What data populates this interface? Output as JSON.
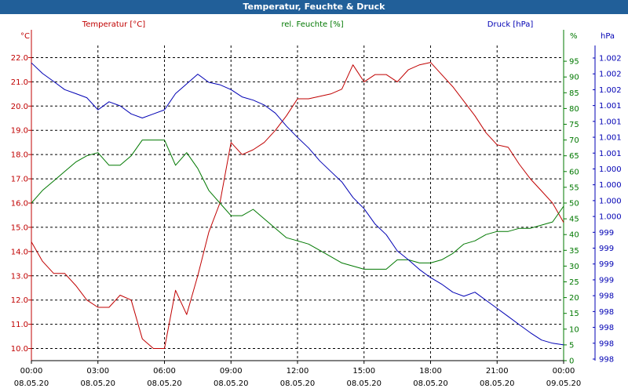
{
  "window": {
    "title": "Temperatur, Feuchte & Druck"
  },
  "colors": {
    "temperature": "#c00000",
    "humidity": "#007800",
    "pressure": "#0000b4",
    "axis": "#000000",
    "grid": "#000000"
  },
  "chart_data": {
    "type": "line",
    "title": "Temperatur, Feuchte & Druck",
    "grid": true,
    "x_axis": {
      "range": [
        "08.05.20 00:00",
        "09.05.20 00:00"
      ],
      "ticks": [
        {
          "time": "00:00",
          "date": "08.05.20"
        },
        {
          "time": "03:00",
          "date": "08.05.20"
        },
        {
          "time": "06:00",
          "date": "08.05.20"
        },
        {
          "time": "09:00",
          "date": "08.05.20"
        },
        {
          "time": "12:00",
          "date": "08.05.20"
        },
        {
          "time": "15:00",
          "date": "08.05.20"
        },
        {
          "time": "18:00",
          "date": "08.05.20"
        },
        {
          "time": "21:00",
          "date": "08.05.20"
        },
        {
          "time": "00:00",
          "date": "09.05.20"
        }
      ]
    },
    "y_axes": {
      "temperature": {
        "label": "Temperatur [°C]",
        "unit": "°C",
        "range": [
          9.5,
          22.5
        ],
        "ticks": [
          "10.0",
          "11.0",
          "12.0",
          "13.0",
          "14.0",
          "15.0",
          "16.0",
          "17.0",
          "18.0",
          "19.0",
          "20.0",
          "21.0",
          "22.0"
        ]
      },
      "humidity": {
        "label": "rel. Feuchte [%]",
        "unit": "%",
        "range": [
          0,
          100
        ],
        "ticks": [
          "0",
          "5",
          "10",
          "15",
          "20",
          "25",
          "30",
          "35",
          "40",
          "45",
          "50",
          "55",
          "60",
          "65",
          "70",
          "75",
          "80",
          "85",
          "90",
          "95"
        ]
      },
      "pressure": {
        "label": "Druck [hPa]",
        "unit": "hPa",
        "ticks": [
          "998",
          "998",
          "998",
          "998",
          "998",
          "999",
          "999",
          "999",
          "999",
          "1.000",
          "1.000",
          "1.000",
          "1.000",
          "1.001",
          "1.001",
          "1.001",
          "1.001",
          "1.002",
          "1.002",
          "1.002"
        ]
      }
    },
    "series": [
      {
        "name": "Temperatur [°C]",
        "axis": "temperature",
        "x": [
          "00:00",
          "00:30",
          "01:00",
          "01:30",
          "02:00",
          "02:30",
          "03:00",
          "03:30",
          "04:00",
          "04:30",
          "05:00",
          "05:30",
          "06:00",
          "06:30",
          "07:00",
          "07:30",
          "08:00",
          "08:30",
          "09:00",
          "09:30",
          "10:00",
          "10:30",
          "11:00",
          "11:30",
          "12:00",
          "12:30",
          "13:00",
          "13:30",
          "14:00",
          "14:30",
          "15:00",
          "15:30",
          "16:00",
          "16:30",
          "17:00",
          "17:30",
          "18:00",
          "18:30",
          "19:00",
          "19:30",
          "20:00",
          "20:30",
          "21:00",
          "21:30",
          "22:00",
          "22:30",
          "23:00",
          "23:30",
          "24:00"
        ],
        "y": [
          14.4,
          13.6,
          13.1,
          13.1,
          12.6,
          12.0,
          11.7,
          11.7,
          12.2,
          12.0,
          10.4,
          10.0,
          10.0,
          12.4,
          11.4,
          13.0,
          14.8,
          16.0,
          18.5,
          18.0,
          18.2,
          18.5,
          19.0,
          19.6,
          20.3,
          20.3,
          20.4,
          20.5,
          20.7,
          21.7,
          21.0,
          21.3,
          21.3,
          21.0,
          21.5,
          21.7,
          21.8,
          21.3,
          20.8,
          20.2,
          19.6,
          18.9,
          18.4,
          18.3,
          17.6,
          17.0,
          16.5,
          16.0,
          15.2
        ]
      },
      {
        "name": "rel. Feuchte [%]",
        "axis": "humidity",
        "x": [
          "00:00",
          "00:30",
          "01:00",
          "01:30",
          "02:00",
          "02:30",
          "03:00",
          "03:30",
          "04:00",
          "04:30",
          "05:00",
          "05:30",
          "06:00",
          "06:30",
          "07:00",
          "07:30",
          "08:00",
          "08:30",
          "09:00",
          "09:30",
          "10:00",
          "10:30",
          "11:00",
          "11:30",
          "12:00",
          "12:30",
          "13:00",
          "13:30",
          "14:00",
          "14:30",
          "15:00",
          "15:30",
          "16:00",
          "16:30",
          "17:00",
          "17:30",
          "18:00",
          "18:30",
          "19:00",
          "19:30",
          "20:00",
          "20:30",
          "21:00",
          "21:30",
          "22:00",
          "22:30",
          "23:00",
          "23:30",
          "24:00"
        ],
        "y": [
          50,
          54,
          57,
          60,
          63,
          65,
          66,
          62,
          62,
          65,
          70,
          70,
          70,
          62,
          66,
          61,
          54,
          50,
          46,
          46,
          48,
          45,
          42,
          39,
          38,
          37,
          35,
          33,
          31,
          30,
          29,
          29,
          29,
          32,
          32,
          31,
          31,
          32,
          34,
          37,
          38,
          40,
          41,
          41,
          42,
          42,
          43,
          44,
          49
        ]
      },
      {
        "name": "Druck [hPa]",
        "axis": "pressure",
        "x": [
          "00:00",
          "00:30",
          "01:00",
          "01:30",
          "02:00",
          "02:30",
          "03:00",
          "03:30",
          "04:00",
          "04:30",
          "05:00",
          "05:30",
          "06:00",
          "06:30",
          "07:00",
          "07:30",
          "08:00",
          "08:30",
          "09:00",
          "09:30",
          "10:00",
          "10:30",
          "11:00",
          "11:30",
          "12:00",
          "12:30",
          "13:00",
          "13:30",
          "14:00",
          "14:30",
          "15:00",
          "15:30",
          "16:00",
          "16:30",
          "17:00",
          "17:30",
          "18:00",
          "18:30",
          "19:00",
          "19:30",
          "20:00",
          "20:30",
          "21:00",
          "21:30",
          "22:00",
          "22:30",
          "23:00",
          "23:30",
          "24:00"
        ],
        "y": [
          1002.18,
          1002.05,
          1001.95,
          1001.85,
          1001.8,
          1001.75,
          1001.6,
          1001.7,
          1001.65,
          1001.55,
          1001.5,
          1001.55,
          1001.6,
          1001.8,
          1001.92,
          1002.04,
          1001.94,
          1001.91,
          1001.85,
          1001.76,
          1001.72,
          1001.66,
          1001.56,
          1001.4,
          1001.26,
          1001.13,
          1000.97,
          1000.84,
          1000.71,
          1000.52,
          1000.38,
          1000.19,
          1000.06,
          999.86,
          999.75,
          999.63,
          999.53,
          999.45,
          999.35,
          999.3,
          999.35,
          999.25,
          999.15,
          999.05,
          998.95,
          998.85,
          998.76,
          998.72,
          998.7
        ]
      }
    ]
  }
}
